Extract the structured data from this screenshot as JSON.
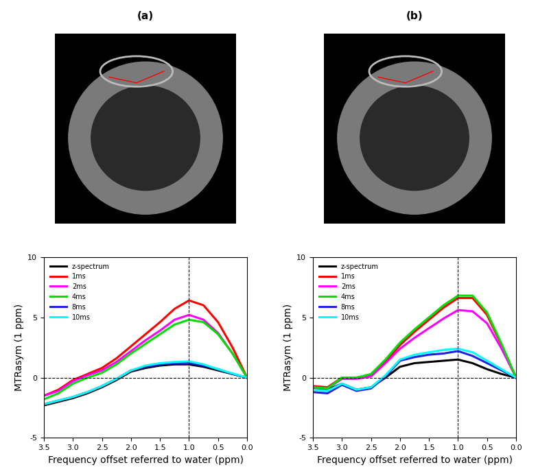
{
  "chart_data": [
    {
      "type": "line",
      "title": "(a)",
      "x_label": "Frequency offset referred to water (ppm)",
      "y_label": "MTRasym (1 ppm)",
      "x": [
        3.5,
        3.25,
        3.0,
        2.75,
        2.5,
        2.25,
        2.0,
        1.75,
        1.5,
        1.25,
        1.0,
        0.75,
        0.5,
        0.25,
        0.0
      ],
      "xlim": [
        3.5,
        0.0
      ],
      "xticks": [
        3.5,
        3.0,
        2.5,
        2.0,
        1.5,
        1.0,
        0.5,
        0.0
      ],
      "ylim": [
        -5,
        10
      ],
      "yticks": [
        -5,
        0,
        5,
        10
      ],
      "vlines": [
        1.0
      ],
      "hlines": [
        0
      ],
      "legend": "upper left",
      "series": [
        {
          "name": "z-spectrum",
          "color": "#000000",
          "values": [
            -2.3,
            -2.0,
            -1.7,
            -1.3,
            -0.8,
            -0.2,
            0.5,
            0.8,
            1.0,
            1.1,
            1.1,
            0.9,
            0.6,
            0.3,
            0.0
          ]
        },
        {
          "name": "1ms",
          "color": "#ff0000",
          "values": [
            -1.5,
            -1.0,
            -0.2,
            0.3,
            0.8,
            1.6,
            2.6,
            3.6,
            4.6,
            5.7,
            6.4,
            6.0,
            4.6,
            2.5,
            0.0
          ]
        },
        {
          "name": "2ms",
          "color": "#ff00ff",
          "values": [
            -1.5,
            -1.1,
            -0.3,
            0.2,
            0.6,
            1.3,
            2.2,
            3.1,
            3.9,
            4.8,
            5.2,
            4.8,
            3.7,
            2.0,
            0.0
          ]
        },
        {
          "name": "4ms",
          "color": "#00e000",
          "values": [
            -1.8,
            -1.3,
            -0.5,
            0.0,
            0.4,
            1.1,
            2.0,
            2.8,
            3.6,
            4.4,
            4.8,
            4.6,
            3.6,
            2.0,
            0.0
          ]
        },
        {
          "name": "8ms",
          "color": "#2020e0",
          "values": [
            -2.2,
            -1.9,
            -1.6,
            -1.2,
            -0.7,
            -0.1,
            0.6,
            0.9,
            1.1,
            1.2,
            1.2,
            1.0,
            0.7,
            0.3,
            0.0
          ]
        },
        {
          "name": "10ms",
          "color": "#00ffff",
          "values": [
            -2.2,
            -1.9,
            -1.6,
            -1.2,
            -0.7,
            -0.1,
            0.6,
            1.0,
            1.2,
            1.3,
            1.35,
            1.1,
            0.7,
            0.35,
            0.0
          ]
        }
      ]
    },
    {
      "type": "line",
      "title": "(b)",
      "x_label": "Frequency offset referred to water (ppm)",
      "y_label": "MTRasym (1 ppm)",
      "x": [
        3.5,
        3.25,
        3.0,
        2.75,
        2.5,
        2.25,
        2.0,
        1.75,
        1.5,
        1.25,
        1.0,
        0.75,
        0.5,
        0.25,
        0.0
      ],
      "xlim": [
        3.5,
        0.0
      ],
      "xticks": [
        3.5,
        3.0,
        2.5,
        2.0,
        1.5,
        1.0,
        0.5,
        0.0
      ],
      "ylim": [
        -5,
        10
      ],
      "yticks": [
        -5,
        0,
        5,
        10
      ],
      "vlines": [
        1.0
      ],
      "hlines": [
        0
      ],
      "legend": "upper left",
      "series": [
        {
          "name": "z-spectrum",
          "color": "#000000",
          "values": [
            -0.9,
            -1.0,
            -0.5,
            -1.0,
            -0.8,
            0.0,
            0.9,
            1.2,
            1.3,
            1.4,
            1.5,
            1.2,
            0.7,
            0.3,
            0.0
          ]
        },
        {
          "name": "1ms",
          "color": "#ff0000",
          "values": [
            -0.7,
            -0.8,
            0.0,
            0.0,
            0.2,
            1.3,
            2.7,
            3.8,
            4.8,
            5.8,
            6.6,
            6.6,
            5.2,
            2.7,
            0.0
          ]
        },
        {
          "name": "2ms",
          "color": "#ff00ff",
          "values": [
            -0.8,
            -0.9,
            -0.1,
            -0.1,
            0.1,
            1.2,
            2.4,
            3.3,
            4.1,
            4.9,
            5.6,
            5.5,
            4.5,
            2.4,
            0.0
          ]
        },
        {
          "name": "4ms",
          "color": "#00e000",
          "values": [
            -0.8,
            -0.9,
            0.0,
            0.0,
            0.3,
            1.5,
            2.9,
            4.0,
            5.0,
            6.0,
            6.8,
            6.8,
            5.4,
            2.8,
            0.0
          ]
        },
        {
          "name": "8ms",
          "color": "#2020e0",
          "values": [
            -1.2,
            -1.3,
            -0.6,
            -1.1,
            -0.9,
            0.1,
            1.4,
            1.7,
            1.9,
            2.0,
            2.2,
            1.8,
            1.2,
            0.6,
            0.0
          ]
        },
        {
          "name": "10ms",
          "color": "#00ffff",
          "values": [
            -1.0,
            -1.1,
            -0.5,
            -1.0,
            -0.8,
            0.2,
            1.5,
            1.9,
            2.1,
            2.3,
            2.4,
            2.1,
            1.4,
            0.7,
            0.0
          ]
        }
      ]
    }
  ]
}
